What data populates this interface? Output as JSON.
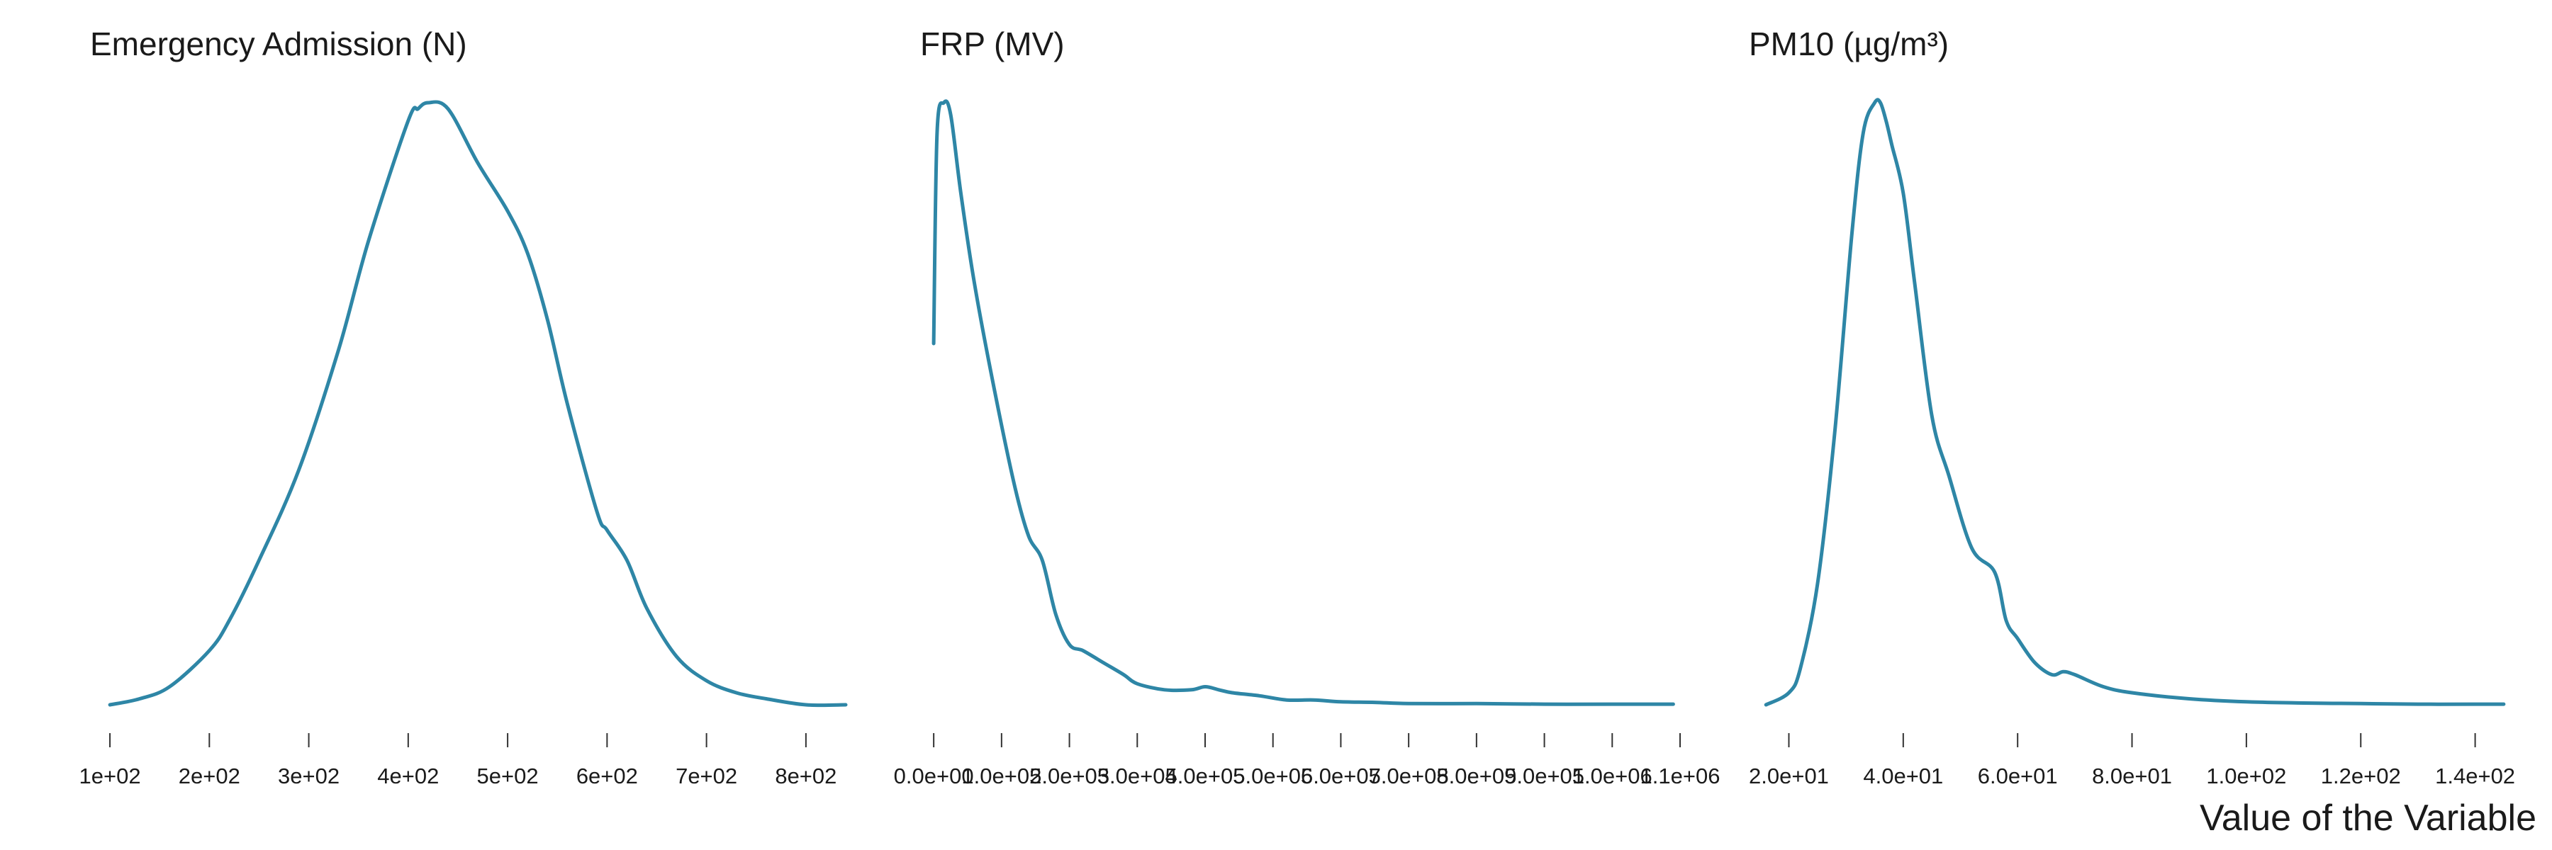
{
  "figure": {
    "xlabel": "Value of the Variable",
    "line_color": "#2e86a6"
  },
  "chart_data": [
    {
      "type": "line",
      "title": "Emergency Admission (N)",
      "xlim": [
        80,
        845
      ],
      "ylim": [
        0,
        1
      ],
      "xticks": [
        100,
        200,
        300,
        400,
        500,
        600,
        700,
        800
      ],
      "xtick_labels": [
        "1e+02",
        "2e+02",
        "3e+02",
        "4e+02",
        "5e+02",
        "6e+02",
        "7e+02",
        "8e+02"
      ],
      "series": [
        {
          "x": [
            100,
            130,
            160,
            200,
            220,
            250,
            290,
            330,
            360,
            400,
            410,
            420,
            440,
            470,
            500,
            520,
            540,
            560,
            590,
            600,
            620,
            640,
            670,
            700,
            730,
            760,
            800,
            840
          ],
          "y": [
            0.0,
            0.01,
            0.03,
            0.09,
            0.14,
            0.24,
            0.39,
            0.59,
            0.77,
            0.97,
            0.99,
            1.0,
            0.99,
            0.9,
            0.82,
            0.75,
            0.64,
            0.5,
            0.32,
            0.29,
            0.24,
            0.16,
            0.08,
            0.04,
            0.02,
            0.01,
            0.0,
            0.0
          ]
        }
      ]
    },
    {
      "type": "line",
      "title": "FRP (MV)",
      "xlim": [
        -20000,
        1100000
      ],
      "ylim": [
        0,
        1
      ],
      "xticks": [
        0,
        100000,
        200000,
        300000,
        400000,
        500000,
        600000,
        700000,
        800000,
        900000,
        1000000,
        1100000
      ],
      "xtick_labels": [
        "0.0e+00",
        "1.0e+05",
        "2.0e+05",
        "3.0e+05",
        "4.0e+05",
        "5.0e+05",
        "6.0e+05",
        "7.0e+05",
        "8.0e+05",
        "9.0e+05",
        "1.0e+06",
        "1.1e+06"
      ],
      "series": [
        {
          "x": [
            0,
            5000,
            15000,
            25000,
            40000,
            60000,
            90000,
            120000,
            140000,
            160000,
            180000,
            200000,
            220000,
            250000,
            280000,
            300000,
            340000,
            380000,
            400000,
            420000,
            440000,
            480000,
            520000,
            560000,
            600000,
            650000,
            700000,
            800000,
            900000,
            1000000,
            1090000
          ],
          "y": [
            0.6,
            0.95,
            1.0,
            0.98,
            0.85,
            0.7,
            0.52,
            0.36,
            0.28,
            0.24,
            0.15,
            0.1,
            0.09,
            0.07,
            0.05,
            0.035,
            0.025,
            0.025,
            0.03,
            0.025,
            0.02,
            0.015,
            0.008,
            0.008,
            0.005,
            0.004,
            0.002,
            0.002,
            0.001,
            0.001,
            0.001
          ]
        }
      ]
    },
    {
      "type": "line",
      "title": "PM10 (µg/m³)",
      "xlim": [
        13,
        146
      ],
      "ylim": [
        0,
        1
      ],
      "xticks": [
        20,
        40,
        60,
        80,
        100,
        120,
        140
      ],
      "xtick_labels": [
        "2.0e+01",
        "4.0e+01",
        "6.0e+01",
        "8.0e+01",
        "1.0e+02",
        "1.2e+02",
        "1.4e+02"
      ],
      "series": [
        {
          "x": [
            16,
            20,
            22,
            25,
            28,
            31,
            33,
            35,
            36,
            37,
            38,
            40,
            42,
            45,
            48,
            52,
            56,
            58,
            60,
            63,
            66,
            68,
            70,
            75,
            80,
            90,
            100,
            110,
            120,
            130,
            140,
            145
          ],
          "y": [
            0.0,
            0.02,
            0.06,
            0.2,
            0.45,
            0.78,
            0.95,
            1.0,
            1.0,
            0.97,
            0.93,
            0.85,
            0.7,
            0.48,
            0.38,
            0.26,
            0.22,
            0.14,
            0.11,
            0.07,
            0.05,
            0.055,
            0.05,
            0.03,
            0.02,
            0.01,
            0.005,
            0.003,
            0.002,
            0.001,
            0.001,
            0.001
          ]
        }
      ]
    }
  ]
}
